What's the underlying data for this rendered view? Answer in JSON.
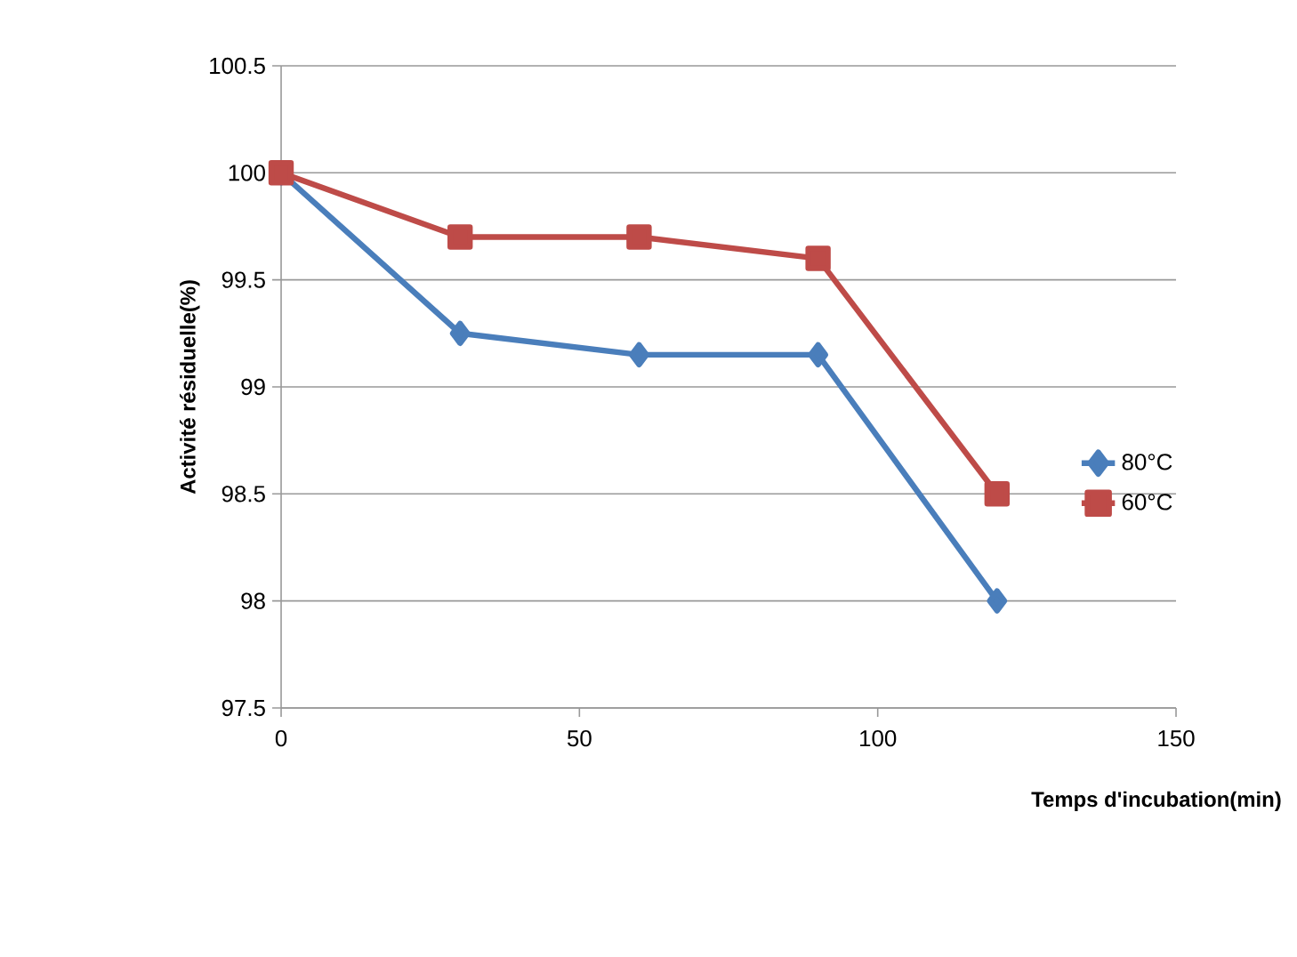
{
  "chart_data": {
    "type": "line",
    "xlabel": "Temps d'incubation(min)",
    "ylabel": "Activité résiduelle(%)",
    "x": [
      0,
      30,
      60,
      90,
      120
    ],
    "series": [
      {
        "name": "80°C",
        "color": "#4a7ebb",
        "marker": "diamond",
        "values": [
          100,
          99.25,
          99.15,
          99.15,
          98
        ]
      },
      {
        "name": "60°C",
        "color": "#be4b48",
        "marker": "square",
        "values": [
          100,
          99.7,
          99.7,
          99.6,
          98.5
        ]
      }
    ],
    "xlim": [
      0,
      150
    ],
    "xticks": [
      0,
      50,
      100,
      150
    ],
    "ylim": [
      97.5,
      100.5
    ],
    "yticks": [
      97.5,
      98,
      98.5,
      99,
      99.5,
      100,
      100.5
    ],
    "grid": "y",
    "legend": "right",
    "line_style": "solid"
  }
}
